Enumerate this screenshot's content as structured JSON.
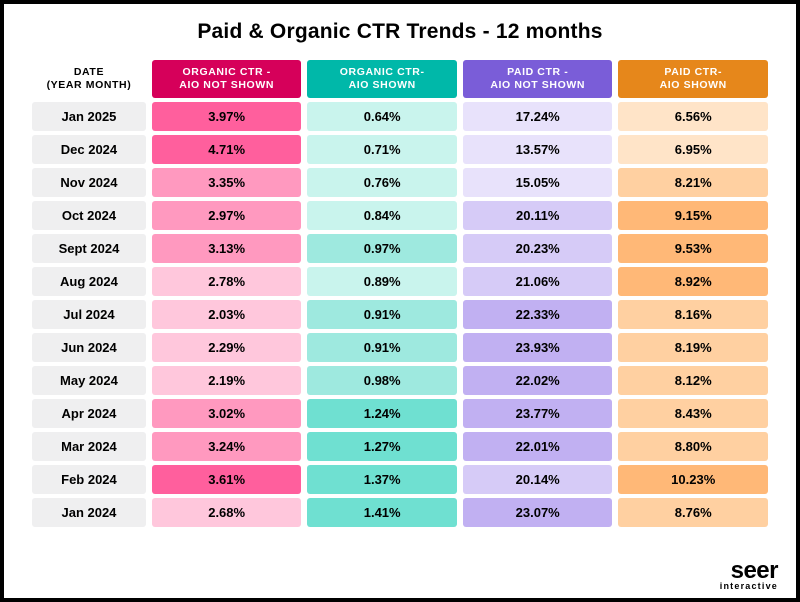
{
  "title": "Paid & Organic CTR Trends - 12 months",
  "logo": {
    "brand": "seer",
    "sub": "interactive"
  },
  "date_header": {
    "line1": "DATE",
    "line2": "(YEAR MONTH)"
  },
  "columns": [
    {
      "line1": "ORGANIC CTR -",
      "line2": "AIO NOT SHOWN",
      "header_color": "#d6005a",
      "light": "#ffc7dc",
      "mid": "#ff99bf",
      "strong": "#ff5f9d"
    },
    {
      "line1": "ORGANIC CTR-",
      "line2": "AIO SHOWN",
      "header_color": "#00b8a9",
      "light": "#c9f4ed",
      "mid": "#9ee9df",
      "strong": "#6fe0d1"
    },
    {
      "line1": "PAID CTR -",
      "line2": "AIO NOT SHOWN",
      "header_color": "#7a5dd8",
      "light": "#e8e2fb",
      "mid": "#d6cbf7",
      "strong": "#c1b0f2"
    },
    {
      "line1": "PAID CTR-",
      "line2": "AIO SHOWN",
      "header_color": "#e6871b",
      "light": "#ffe4c8",
      "mid": "#ffd0a1",
      "strong": "#ffb877"
    }
  ],
  "rows": [
    {
      "date": "Jan 2025",
      "cells": [
        {
          "v": "3.97%",
          "s": "strong"
        },
        {
          "v": "0.64%",
          "s": "light"
        },
        {
          "v": "17.24%",
          "s": "light"
        },
        {
          "v": "6.56%",
          "s": "light"
        }
      ]
    },
    {
      "date": "Dec 2024",
      "cells": [
        {
          "v": "4.71%",
          "s": "strong"
        },
        {
          "v": "0.71%",
          "s": "light"
        },
        {
          "v": "13.57%",
          "s": "light"
        },
        {
          "v": "6.95%",
          "s": "light"
        }
      ]
    },
    {
      "date": "Nov 2024",
      "cells": [
        {
          "v": "3.35%",
          "s": "mid"
        },
        {
          "v": "0.76%",
          "s": "light"
        },
        {
          "v": "15.05%",
          "s": "light"
        },
        {
          "v": "8.21%",
          "s": "mid"
        }
      ]
    },
    {
      "date": "Oct 2024",
      "cells": [
        {
          "v": "2.97%",
          "s": "mid"
        },
        {
          "v": "0.84%",
          "s": "light"
        },
        {
          "v": "20.11%",
          "s": "mid"
        },
        {
          "v": "9.15%",
          "s": "strong"
        }
      ]
    },
    {
      "date": "Sept 2024",
      "cells": [
        {
          "v": "3.13%",
          "s": "mid"
        },
        {
          "v": "0.97%",
          "s": "mid"
        },
        {
          "v": "20.23%",
          "s": "mid"
        },
        {
          "v": "9.53%",
          "s": "strong"
        }
      ]
    },
    {
      "date": "Aug 2024",
      "cells": [
        {
          "v": "2.78%",
          "s": "light"
        },
        {
          "v": "0.89%",
          "s": "light"
        },
        {
          "v": "21.06%",
          "s": "mid"
        },
        {
          "v": "8.92%",
          "s": "strong"
        }
      ]
    },
    {
      "date": "Jul 2024",
      "cells": [
        {
          "v": "2.03%",
          "s": "light"
        },
        {
          "v": "0.91%",
          "s": "mid"
        },
        {
          "v": "22.33%",
          "s": "strong"
        },
        {
          "v": "8.16%",
          "s": "mid"
        }
      ]
    },
    {
      "date": "Jun 2024",
      "cells": [
        {
          "v": "2.29%",
          "s": "light"
        },
        {
          "v": "0.91%",
          "s": "mid"
        },
        {
          "v": "23.93%",
          "s": "strong"
        },
        {
          "v": "8.19%",
          "s": "mid"
        }
      ]
    },
    {
      "date": "May 2024",
      "cells": [
        {
          "v": "2.19%",
          "s": "light"
        },
        {
          "v": "0.98%",
          "s": "mid"
        },
        {
          "v": "22.02%",
          "s": "strong"
        },
        {
          "v": "8.12%",
          "s": "mid"
        }
      ]
    },
    {
      "date": "Apr 2024",
      "cells": [
        {
          "v": "3.02%",
          "s": "mid"
        },
        {
          "v": "1.24%",
          "s": "strong"
        },
        {
          "v": "23.77%",
          "s": "strong"
        },
        {
          "v": "8.43%",
          "s": "mid"
        }
      ]
    },
    {
      "date": "Mar 2024",
      "cells": [
        {
          "v": "3.24%",
          "s": "mid"
        },
        {
          "v": "1.27%",
          "s": "strong"
        },
        {
          "v": "22.01%",
          "s": "strong"
        },
        {
          "v": "8.80%",
          "s": "mid"
        }
      ]
    },
    {
      "date": "Feb 2024",
      "cells": [
        {
          "v": "3.61%",
          "s": "strong"
        },
        {
          "v": "1.37%",
          "s": "strong"
        },
        {
          "v": "20.14%",
          "s": "mid"
        },
        {
          "v": "10.23%",
          "s": "strong"
        }
      ]
    },
    {
      "date": "Jan 2024",
      "cells": [
        {
          "v": "2.68%",
          "s": "light"
        },
        {
          "v": "1.41%",
          "s": "strong"
        },
        {
          "v": "23.07%",
          "s": "strong"
        },
        {
          "v": "8.76%",
          "s": "mid"
        }
      ]
    }
  ],
  "style": {
    "date_cell_bg": "#efeff0",
    "background": "#ffffff",
    "border_color": "#000000",
    "title_fontsize": 21,
    "header_fontsize": 10.5,
    "cell_fontsize": 13,
    "col_widths_pct": [
      16,
      21,
      21,
      21,
      21
    ]
  }
}
